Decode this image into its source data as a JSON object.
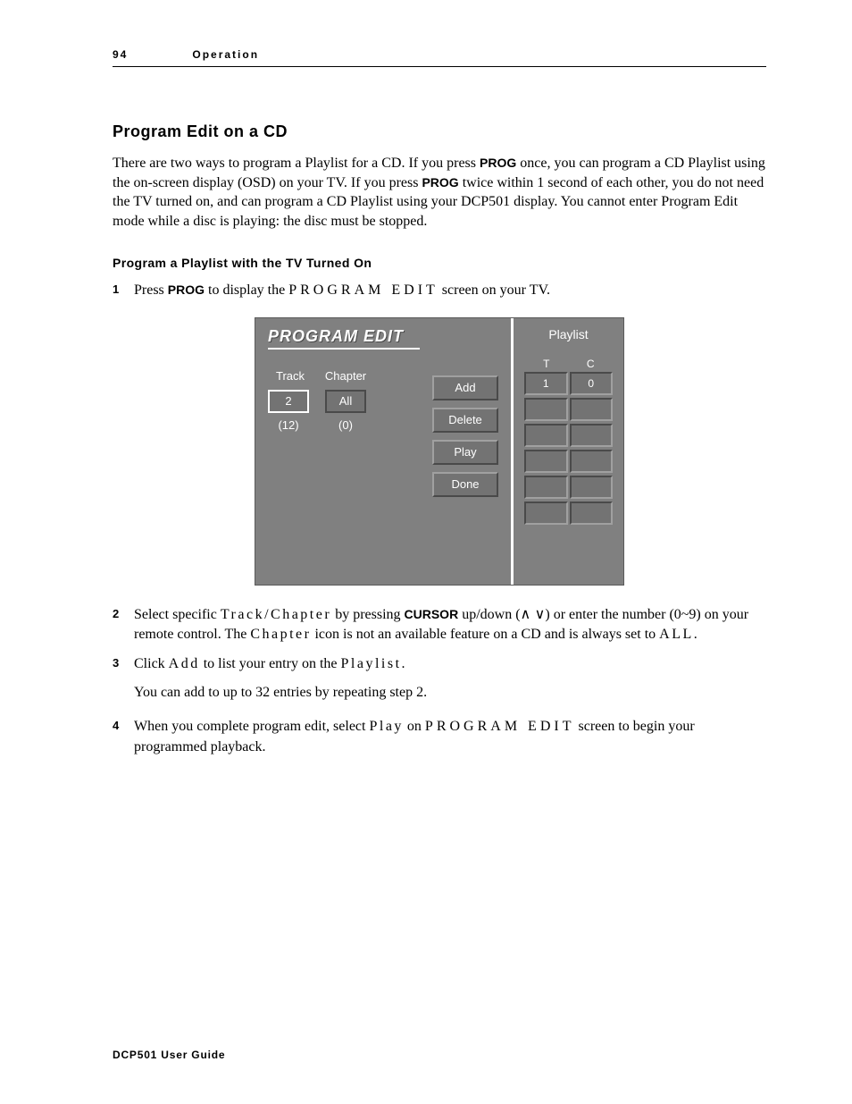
{
  "header": {
    "page_number": "94",
    "section": "Operation"
  },
  "title": "Program Edit on a CD",
  "intro": {
    "part1": "There are two ways to program a Playlist for a CD. If you press ",
    "key1": "PROG",
    "part2": " once, you can program a CD Playlist using the on-screen display (OSD) on your TV. If you press ",
    "key2": "PROG",
    "part3": " twice within 1 second of each other, you do not need the TV turned on, and can program a CD Playlist using your DCP501 display. You cannot enter Program Edit mode while a disc is playing: the disc must be stopped."
  },
  "subheading": "Program a Playlist with the TV Turned On",
  "steps": {
    "s1": {
      "num": "1",
      "pre": "Press ",
      "key": "PROG",
      "mid": " to display the ",
      "spaced": "PROGRAM EDIT",
      "post": " screen on your TV."
    },
    "s2": {
      "num": "2",
      "pre": "Select specific ",
      "spaced1": "Track/Chapter",
      "mid1": " by pressing ",
      "key": "CURSOR",
      "mid2": " up/down (",
      "arrows": "∧ ∨",
      "mid3": ") or enter the number (0~9) on your remote control. The ",
      "spaced2": "Chapter",
      "mid4": " icon is not an available feature on a CD and is always set to ",
      "spaced3": "ALL",
      "post": "."
    },
    "s3": {
      "num": "3",
      "pre": "Click ",
      "spaced1": "Add",
      "mid": " to list your entry on the ",
      "spaced2": "Playlist",
      "post": ".",
      "extra": "You can add to up to 32 entries by repeating step 2."
    },
    "s4": {
      "num": "4",
      "pre": "When you complete program edit, select ",
      "spaced1": "Play",
      "mid": " on ",
      "spaced2": "PROGRAM EDIT",
      "post": " screen to begin your programmed playback."
    }
  },
  "osd": {
    "banner": "PROGRAM EDIT",
    "track_label": "Track",
    "chapter_label": "Chapter",
    "track_value": "2",
    "chapter_value": "All",
    "track_total": "(12)",
    "chapter_total": "(0)",
    "buttons": {
      "add": "Add",
      "delete": "Delete",
      "play": "Play",
      "done": "Done"
    },
    "playlist_label": "Playlist",
    "grid_headers": {
      "t": "T",
      "c": "C"
    },
    "rows": [
      {
        "t": "1",
        "c": "0"
      },
      {
        "t": "",
        "c": ""
      },
      {
        "t": "",
        "c": ""
      },
      {
        "t": "",
        "c": ""
      },
      {
        "t": "",
        "c": ""
      },
      {
        "t": "",
        "c": ""
      }
    ],
    "colors": {
      "panel_bg": "#808080",
      "cell_bg": "#737373",
      "border_dark": "#4a4a4a",
      "border_light": "#a0a0a0",
      "text": "#ffffff"
    }
  },
  "footer": "DCP501 User Guide"
}
